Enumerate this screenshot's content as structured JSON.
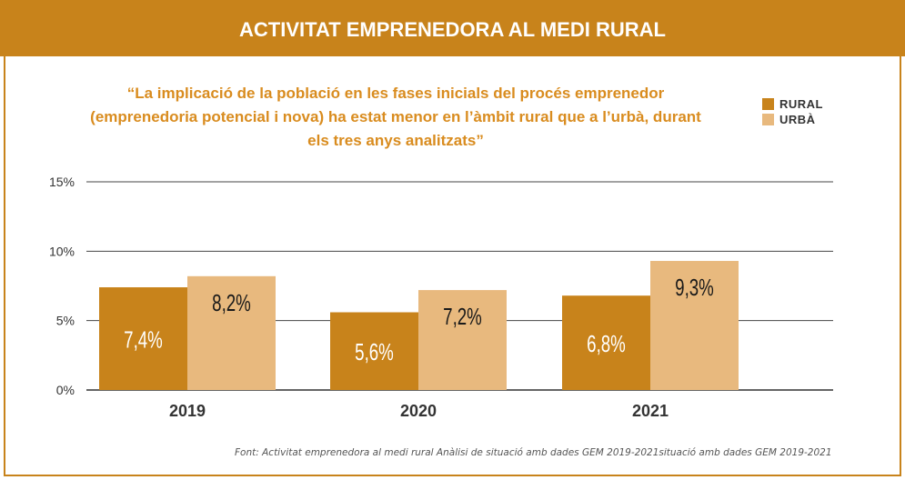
{
  "header": {
    "title": "ACTIVITAT EMPRENEDORA AL MEDI RURAL"
  },
  "quote": "“La implicació de la població en les fases inicials del procés emprenedor (emprenedoria potencial i nova) ha estat menor en l’àmbit rural que a l’urbà, durant els tres anys analitzats”",
  "source": "Font:  Activitat emprenedora al medi rural Anàlisi de situació amb dades GEM 2019-2021situació amb dades GEM 2019-2021",
  "colors": {
    "accent": "#c8831b",
    "rural": "#c8831b",
    "urba": "#e8b97e",
    "quote": "#d98c1f"
  },
  "chart_data": {
    "type": "bar",
    "categories": [
      "2019",
      "2020",
      "2021"
    ],
    "series": [
      {
        "name": "RURAL",
        "values": [
          7.4,
          5.6,
          6.8
        ],
        "labels": [
          "7,4%",
          "5,6%",
          "6,8%"
        ]
      },
      {
        "name": "URBÀ",
        "values": [
          8.2,
          7.2,
          9.3
        ],
        "labels": [
          "8,2%",
          "7,2%",
          "9,3%"
        ]
      }
    ],
    "yticks": [
      "0%",
      "5%",
      "10%",
      "15%"
    ],
    "ylim": [
      0,
      15
    ],
    "grid": true,
    "legend": "top-right"
  }
}
